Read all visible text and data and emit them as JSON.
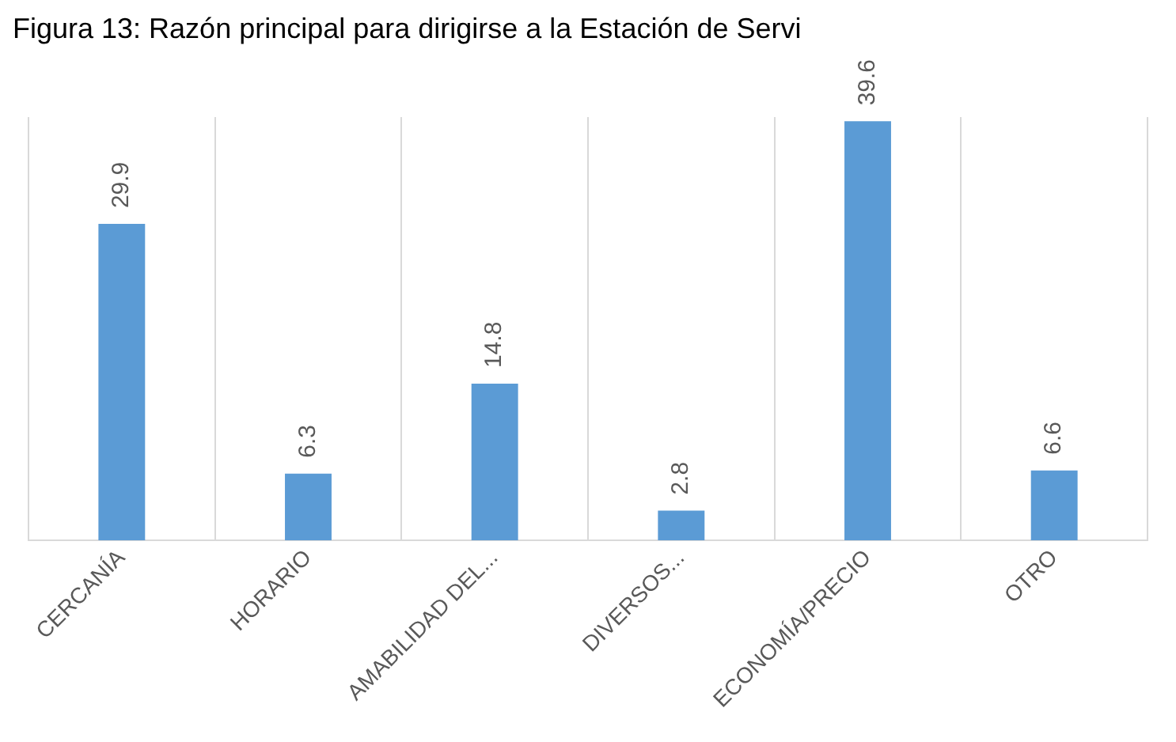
{
  "chart_data": {
    "type": "bar",
    "title": "Figura 13: Razón principal para dirigirse a la Estación de Servi",
    "categories": [
      "CERCANÍA",
      "HORARIO",
      "AMABILIDAD DEL...",
      "DIVERSOS...",
      "ECONOMÍA/PRECIO",
      "OTRO"
    ],
    "values": [
      29.9,
      6.3,
      14.8,
      2.8,
      39.6,
      6.6
    ],
    "color": "#5b9bd5",
    "data_labels": true,
    "grid": "x",
    "legend": false
  }
}
